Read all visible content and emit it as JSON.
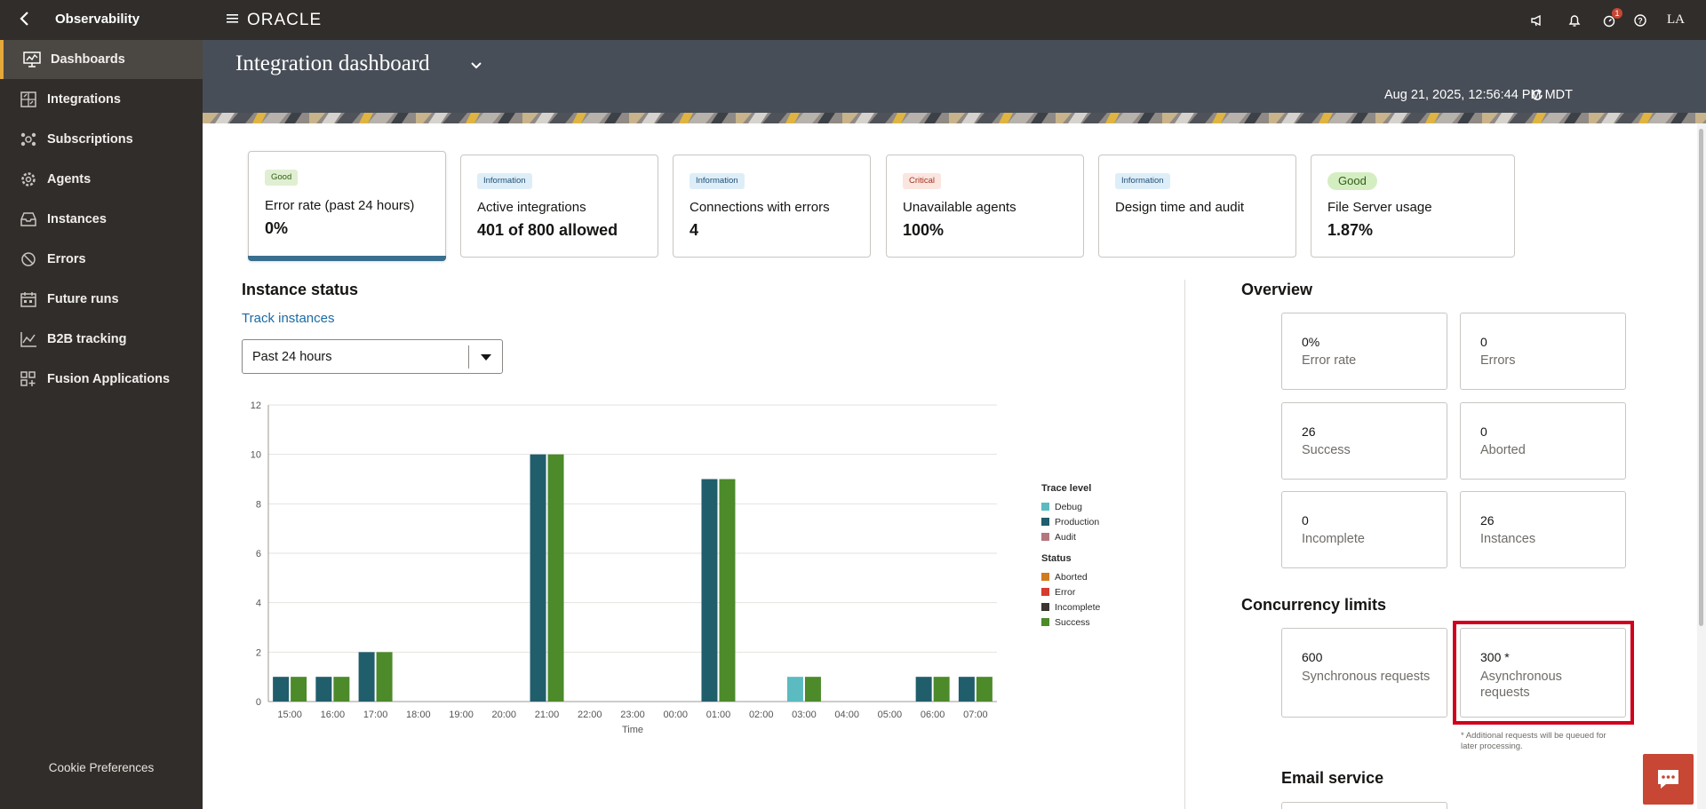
{
  "app": {
    "title": "Observability",
    "user_initials": "LA",
    "notification_badge": "1"
  },
  "icons": {
    "back": "chevron-left-icon",
    "menu": "hamburger-icon",
    "announcements": "megaphone-icon",
    "notifications": "bell-icon",
    "tasks": "timer-icon",
    "help": "help-icon",
    "refresh": "refresh-icon",
    "chat": "chat-icon"
  },
  "sidebar": {
    "items": [
      {
        "label": "Dashboards",
        "icon": "dashboard-icon",
        "active": true
      },
      {
        "label": "Integrations",
        "icon": "integrations-icon",
        "active": false
      },
      {
        "label": "Subscriptions",
        "icon": "subscriptions-icon",
        "active": false
      },
      {
        "label": "Agents",
        "icon": "agents-icon",
        "active": false
      },
      {
        "label": "Instances",
        "icon": "inbox-icon",
        "active": false
      },
      {
        "label": "Errors",
        "icon": "block-icon",
        "active": false
      },
      {
        "label": "Future runs",
        "icon": "calendar-icon",
        "active": false
      },
      {
        "label": "B2B tracking",
        "icon": "line-chart-icon",
        "active": false
      },
      {
        "label": "Fusion Applications",
        "icon": "grid-plus-icon",
        "active": false
      }
    ],
    "cookie_label": "Cookie Preferences"
  },
  "header": {
    "title": "Integration dashboard",
    "timestamp": "Aug 21, 2025, 12:56:44 PM MDT"
  },
  "cards": [
    {
      "tag": "Good",
      "tag_type": "good",
      "label": "Error rate (past 24 hours)",
      "value": "0%"
    },
    {
      "tag": "Information",
      "tag_type": "info",
      "label": "Active integrations",
      "value": "401 of 800 allowed"
    },
    {
      "tag": "Information",
      "tag_type": "info",
      "label": "Connections with errors",
      "value": "4"
    },
    {
      "tag": "Critical",
      "tag_type": "critical",
      "label": "Unavailable agents",
      "value": "100%"
    },
    {
      "tag": "Information",
      "tag_type": "info",
      "label": "Design time and audit",
      "value": ""
    },
    {
      "tag": "Good",
      "tag_type": "good-pill",
      "label": "File Server usage",
      "value": "1.87%"
    }
  ],
  "instance_status": {
    "title": "Instance status",
    "track_link": "Track instances",
    "period_select": "Past 24 hours"
  },
  "chart_data": {
    "type": "bar",
    "xlabel": "Time",
    "ylabel": "",
    "ylim": [
      0,
      12
    ],
    "yticks": [
      0,
      2,
      4,
      6,
      8,
      10,
      12
    ],
    "categories": [
      "15:00",
      "16:00",
      "17:00",
      "18:00",
      "19:00",
      "20:00",
      "21:00",
      "22:00",
      "23:00",
      "00:00",
      "01:00",
      "02:00",
      "03:00",
      "04:00",
      "05:00",
      "06:00",
      "07:00"
    ],
    "series": [
      {
        "name": "Debug",
        "color": "#5bbbc0",
        "values": [
          0,
          0,
          0,
          0,
          0,
          0,
          0,
          0,
          0,
          0,
          0,
          0,
          1,
          0,
          0,
          0,
          0
        ]
      },
      {
        "name": "Production",
        "color": "#215e6c",
        "values": [
          1,
          1,
          2,
          0,
          0,
          0,
          10,
          0,
          0,
          0,
          9,
          0,
          0,
          0,
          0,
          1,
          1
        ]
      },
      {
        "name": "Audit",
        "color": "#b3787f",
        "values": [
          0,
          0,
          0,
          0,
          0,
          0,
          0,
          0,
          0,
          0,
          0,
          0,
          0,
          0,
          0,
          0,
          0
        ]
      },
      {
        "name": "Aborted",
        "color": "#d07b1e",
        "values": [
          0,
          0,
          0,
          0,
          0,
          0,
          0,
          0,
          0,
          0,
          0,
          0,
          0,
          0,
          0,
          0,
          0
        ]
      },
      {
        "name": "Error",
        "color": "#d63b2f",
        "values": [
          0,
          0,
          0,
          0,
          0,
          0,
          0,
          0,
          0,
          0,
          0,
          0,
          0,
          0,
          0,
          0,
          0
        ]
      },
      {
        "name": "Incomplete",
        "color": "#3b3532",
        "values": [
          0,
          0,
          0,
          0,
          0,
          0,
          0,
          0,
          0,
          0,
          0,
          0,
          0,
          0,
          0,
          0,
          0
        ]
      },
      {
        "name": "Success",
        "color": "#4c8a2a",
        "values": [
          1,
          1,
          2,
          0,
          0,
          0,
          10,
          0,
          0,
          0,
          9,
          0,
          1,
          0,
          0,
          1,
          1
        ]
      }
    ],
    "legend": {
      "placement": "right",
      "groups": [
        {
          "title": "Trace level",
          "items": [
            "Debug",
            "Production",
            "Audit"
          ]
        },
        {
          "title": "Status",
          "items": [
            "Aborted",
            "Error",
            "Incomplete",
            "Success"
          ]
        }
      ]
    },
    "grid": true
  },
  "overview": {
    "title": "Overview",
    "tiles": [
      {
        "value": "0%",
        "label": "Error rate"
      },
      {
        "value": "0",
        "label": "Errors"
      },
      {
        "value": "26",
        "label": "Success"
      },
      {
        "value": "0",
        "label": "Aborted"
      },
      {
        "value": "0",
        "label": "Incomplete"
      },
      {
        "value": "26",
        "label": "Instances"
      }
    ]
  },
  "concurrency": {
    "title": "Concurrency limits",
    "tiles": [
      {
        "value": "600",
        "label": "Synchronous requests"
      },
      {
        "value": "300 *",
        "label": "Asynchronous requests"
      }
    ],
    "footnote": "* Additional requests will be queued for later processing."
  },
  "email_service": {
    "title": "Email service"
  },
  "colors": {
    "topbar": "#312d2a",
    "header": "#484e57",
    "accent": "#e5a83b",
    "highlight": "#d0021b",
    "link": "#1b6aa5"
  }
}
